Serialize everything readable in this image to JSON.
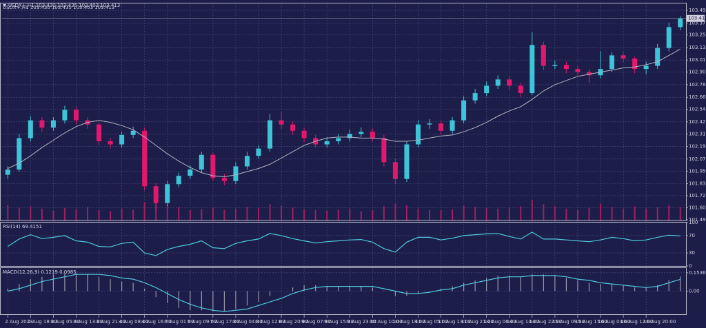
{
  "chart_data": [
    {
      "type": "candlestick",
      "title": "USDX+,H1  103.430 103.435 103.403 103.413",
      "x": [
        "2 Aug 2023",
        null,
        "2 Aug 18:00",
        null,
        "3 Aug 05:00",
        null,
        "3 Aug 13:00",
        null,
        "3 Aug 21:00",
        null,
        "4 Aug 08:00",
        null,
        "4 Aug 16:00",
        null,
        "7 Aug 01:00",
        null,
        "7 Aug 09:00",
        null,
        "7 Aug 17:00",
        null,
        "8 Aug 04:00",
        null,
        "8 Aug 12:00",
        null,
        "8 Aug 20:00",
        null,
        "9 Aug 07:00",
        null,
        "9 Aug 15:00",
        null,
        "9 Aug 23:00",
        null,
        "10 Aug 10:00",
        null,
        "10 Aug 18:00",
        null,
        "11 Aug 05:00",
        null,
        "11 Aug 13:00",
        null,
        "11 Aug 21:00",
        null,
        "14 Aug 06:00",
        null,
        "14 Aug 14:00",
        null,
        "14 Aug 22:00",
        null,
        "15 Aug 09:00",
        null,
        "15 Aug 17:00",
        null,
        "16 Aug 04:00",
        null,
        "16 Aug 12:00",
        null,
        "16 Aug 20:00",
        null,
        null,
        null
      ],
      "open": [
        101.92,
        101.97,
        102.27,
        102.44,
        102.37,
        102.44,
        102.54,
        102.44,
        102.4,
        102.24,
        102.21,
        102.3,
        102.34,
        101.81,
        101.65,
        101.83,
        101.91,
        101.97,
        102.11,
        101.89,
        101.86,
        102.0,
        102.1,
        102.17,
        102.44,
        102.4,
        102.34,
        102.27,
        102.21,
        102.24,
        102.27,
        102.31,
        102.33,
        102.27,
        102.04,
        101.88,
        102.21,
        102.4,
        102.41,
        102.34,
        102.44,
        102.63,
        102.7,
        102.77,
        102.83,
        102.77,
        102.7,
        103.16,
        102.96,
        102.97,
        102.93,
        102.9,
        102.87,
        102.93,
        103.06,
        103.03,
        102.93,
        102.96,
        103.13,
        103.33
      ],
      "high": [
        102.0,
        102.31,
        102.48,
        102.47,
        102.47,
        102.58,
        102.57,
        102.47,
        102.42,
        102.27,
        102.33,
        102.38,
        102.37,
        101.84,
        101.86,
        101.94,
        102.01,
        102.14,
        102.13,
        101.93,
        102.04,
        102.14,
        102.2,
        102.5,
        102.52,
        102.43,
        102.37,
        102.3,
        102.28,
        102.31,
        102.35,
        102.37,
        102.36,
        102.3,
        102.07,
        102.24,
        102.44,
        102.45,
        102.44,
        102.47,
        102.67,
        102.74,
        102.81,
        102.87,
        102.86,
        102.8,
        103.28,
        103.19,
        103.01,
        103.0,
        102.96,
        102.93,
        103.1,
        103.09,
        103.09,
        103.05,
        103.0,
        103.17,
        103.37,
        103.435
      ],
      "low": [
        101.88,
        101.95,
        102.24,
        102.33,
        102.34,
        102.41,
        102.4,
        102.36,
        102.2,
        102.17,
        102.18,
        102.27,
        101.77,
        101.58,
        101.62,
        101.8,
        101.88,
        101.94,
        101.86,
        101.82,
        101.83,
        101.97,
        102.07,
        102.14,
        102.36,
        102.3,
        102.23,
        102.18,
        102.18,
        102.21,
        102.24,
        102.28,
        102.24,
        102.0,
        101.83,
        101.85,
        102.18,
        102.36,
        102.3,
        102.31,
        102.41,
        102.6,
        102.67,
        102.74,
        102.73,
        102.66,
        102.68,
        102.92,
        102.93,
        102.89,
        102.86,
        102.8,
        102.84,
        102.9,
        102.99,
        102.89,
        102.88,
        102.93,
        103.1,
        103.3
      ],
      "close": [
        101.97,
        102.27,
        102.44,
        102.37,
        102.44,
        102.54,
        102.44,
        102.4,
        102.24,
        102.21,
        102.3,
        102.34,
        101.81,
        101.65,
        101.83,
        101.91,
        101.97,
        102.11,
        101.89,
        101.86,
        102.0,
        102.1,
        102.17,
        102.44,
        102.4,
        102.34,
        102.27,
        102.21,
        102.24,
        102.27,
        102.31,
        102.33,
        102.27,
        102.04,
        101.88,
        102.21,
        102.4,
        102.41,
        102.34,
        102.44,
        102.63,
        102.7,
        102.77,
        102.83,
        102.77,
        102.7,
        103.16,
        102.96,
        102.97,
        102.93,
        102.9,
        102.87,
        102.93,
        103.06,
        103.03,
        102.93,
        102.96,
        103.13,
        103.33,
        103.413
      ],
      "up_color": "#3fc3d8",
      "down_color": "#e2186f",
      "ma": [
        101.98,
        102.03,
        102.1,
        102.18,
        102.25,
        102.32,
        102.38,
        102.42,
        102.44,
        102.42,
        102.39,
        102.35,
        102.28,
        102.2,
        102.12,
        102.05,
        101.99,
        101.94,
        101.91,
        101.9,
        101.92,
        101.95,
        101.98,
        102.02,
        102.08,
        102.14,
        102.2,
        102.24,
        102.27,
        102.28,
        102.28,
        102.27,
        102.27,
        102.26,
        102.24,
        102.24,
        102.25,
        102.27,
        102.29,
        102.3,
        102.33,
        102.37,
        102.42,
        102.48,
        102.53,
        102.57,
        102.64,
        102.72,
        102.78,
        102.82,
        102.86,
        102.88,
        102.9,
        102.92,
        102.94,
        102.95,
        102.97,
        103.0,
        103.06,
        103.12
      ],
      "ma_color": "#b4b4c4",
      "volume": [
        2800,
        2400,
        2600,
        2200,
        1800,
        2300,
        2100,
        2500,
        1900,
        1700,
        2200,
        2000,
        3400,
        3600,
        2900,
        2500,
        1900,
        2100,
        2400,
        2000,
        2200,
        2500,
        2300,
        3000,
        2700,
        2400,
        2100,
        1900,
        1800,
        2000,
        2200,
        1700,
        1900,
        2600,
        3100,
        2800,
        2200,
        2000,
        1900,
        2100,
        2700,
        2500,
        2300,
        2200,
        2400,
        2600,
        3800,
        3000,
        2600,
        2200,
        2000,
        2300,
        3100,
        2500,
        2200,
        2600,
        2200,
        2400,
        2800,
        2500
      ],
      "volume_color": "#a41d63",
      "vlim": [
        0,
        40000
      ],
      "ylim": [
        101.483,
        103.556
      ],
      "yticks": [
        {
          "value": 101.49,
          "label": "101.490"
        },
        101.605,
        {
          "value": 101.72,
          "label": "101.720"
        },
        101.835,
        101.955,
        {
          "value": 102.07,
          "label": "102.070"
        },
        {
          "value": 102.19,
          "label": "102.190"
        },
        {
          "value": 102.31,
          "label": "102.310"
        },
        102.425,
        102.545,
        {
          "value": 102.66,
          "label": "102.660"
        },
        {
          "value": 102.78,
          "label": "102.780"
        },
        {
          "value": 102.9,
          "label": "102.900"
        },
        103.015,
        103.135,
        103.255,
        {
          "value": 103.37,
          "label": "103.370"
        },
        {
          "value": 103.49,
          "label": "103.490"
        }
      ],
      "grid": true
    },
    {
      "type": "line",
      "title": "RSI(14) 69.4151",
      "values": [
        45,
        62,
        72,
        63,
        66,
        70,
        58,
        55,
        45,
        44,
        52,
        55,
        30,
        24,
        38,
        45,
        50,
        58,
        42,
        40,
        52,
        58,
        62,
        75,
        70,
        63,
        58,
        53,
        56,
        58,
        60,
        61,
        55,
        40,
        32,
        55,
        66,
        66,
        60,
        64,
        70,
        72,
        74,
        75,
        68,
        62,
        78,
        62,
        62,
        60,
        58,
        56,
        60,
        66,
        63,
        58,
        60,
        66,
        71,
        69.4151
      ],
      "color": "#4ec9de",
      "ylim": [
        0,
        100
      ],
      "yticks": [
        0,
        30,
        70,
        100
      ],
      "grid": true
    },
    {
      "type": "macd",
      "title": "MACD(12,26,9) 0.1219 0.0985",
      "values": [
        0.02,
        0.06,
        0.1,
        0.12,
        0.14,
        0.15,
        0.15,
        0.14,
        0.12,
        0.1,
        0.08,
        0.07,
        0.02,
        -0.05,
        -0.1,
        -0.14,
        -0.16,
        -0.16,
        -0.17,
        -0.17,
        -0.15,
        -0.12,
        -0.09,
        -0.04,
        0.0,
        0.03,
        0.05,
        0.05,
        0.04,
        0.04,
        0.04,
        0.04,
        0.03,
        0.0,
        -0.04,
        -0.04,
        -0.02,
        0.0,
        0.02,
        0.04,
        0.07,
        0.09,
        0.11,
        0.13,
        0.13,
        0.12,
        0.14,
        0.14,
        0.13,
        0.11,
        0.09,
        0.07,
        0.06,
        0.06,
        0.05,
        0.03,
        0.03,
        0.05,
        0.09,
        0.1219
      ],
      "signal": [
        0.0,
        0.02,
        0.05,
        0.08,
        0.1,
        0.12,
        0.14,
        0.14,
        0.14,
        0.13,
        0.11,
        0.1,
        0.07,
        0.03,
        -0.02,
        -0.07,
        -0.11,
        -0.14,
        -0.16,
        -0.17,
        -0.16,
        -0.15,
        -0.12,
        -0.09,
        -0.06,
        -0.02,
        0.01,
        0.03,
        0.04,
        0.04,
        0.04,
        0.04,
        0.04,
        0.02,
        0.0,
        -0.02,
        -0.02,
        -0.01,
        0.01,
        0.02,
        0.05,
        0.07,
        0.09,
        0.11,
        0.12,
        0.12,
        0.13,
        0.13,
        0.13,
        0.12,
        0.1,
        0.09,
        0.07,
        0.06,
        0.05,
        0.04,
        0.03,
        0.04,
        0.07,
        0.0985
      ],
      "color": "#9a9aae",
      "signal_color": "#4ec9de",
      "ylim": [
        -0.193,
        0.193
      ],
      "yticks": [
        {
          "value": 0,
          "label": "0.00"
        },
        0.1536
      ],
      "grid": true
    }
  ]
}
